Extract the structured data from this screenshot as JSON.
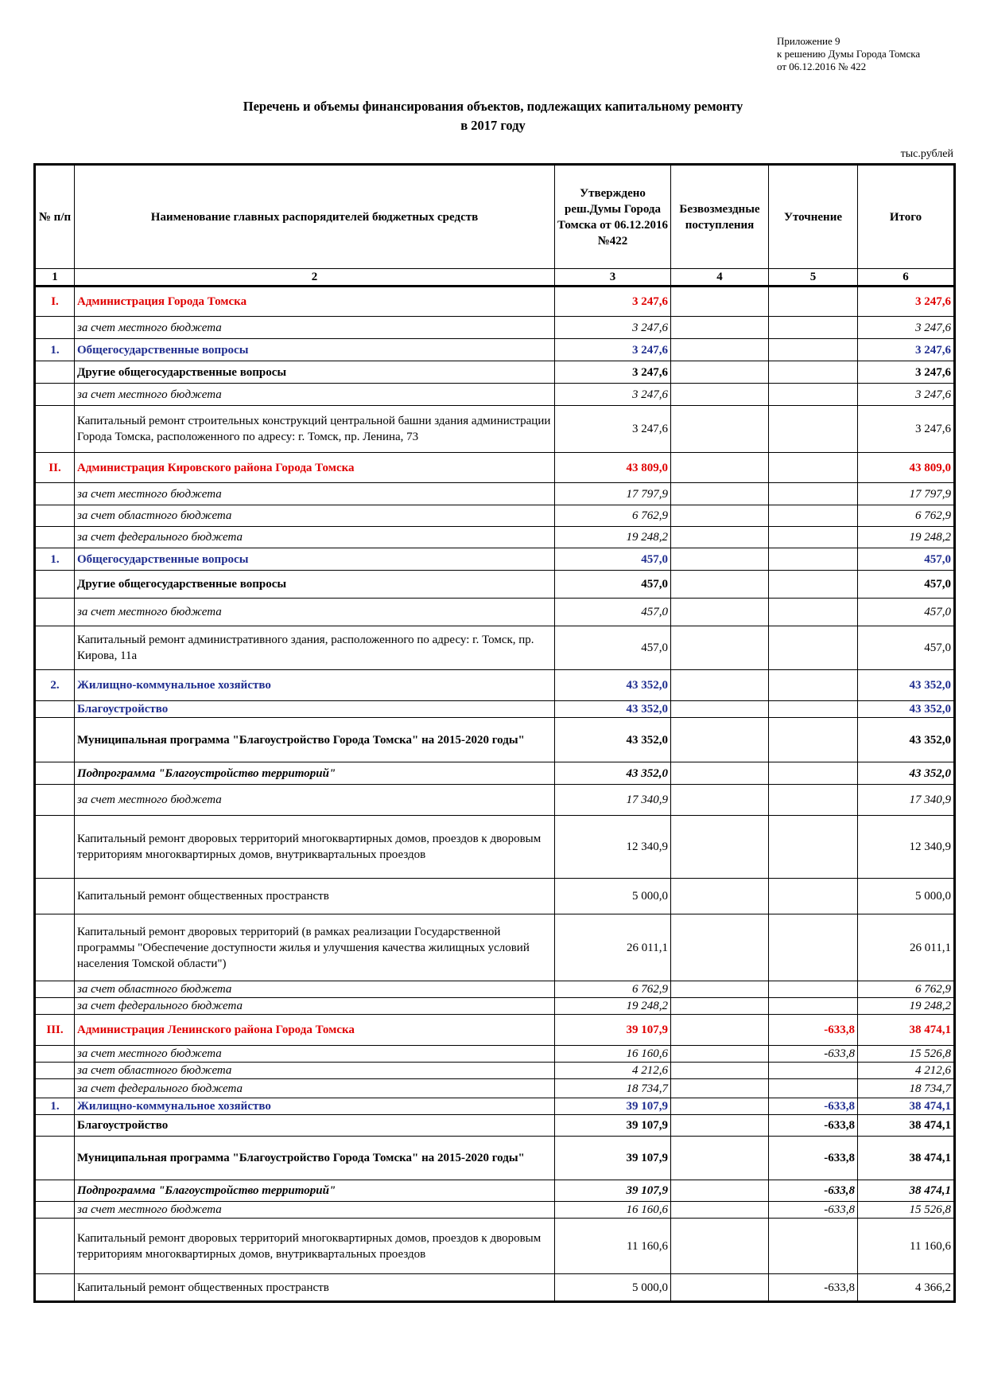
{
  "appendix": [
    "Приложение 9",
    "к решению Думы Города Томска",
    "от 06.12.2016 № 422"
  ],
  "title": [
    "Перечень и объемы финансирования объектов, подлежащих капитальному ремонту",
    "в 2017 году"
  ],
  "unit": "тыс.рублей",
  "headers": [
    "№ п/п",
    "Наименование главных распорядителей бюджетных средств",
    "Утверждено реш.Думы Города Томска от 06.12.2016 №422",
    "Безвозмездные поступления",
    "Уточнение",
    "Итого"
  ],
  "colnums": [
    "1",
    "2",
    "3",
    "4",
    "5",
    "6"
  ],
  "rows": [
    {
      "num": "I.",
      "name": "Администрация Города Томска",
      "approved": "3 247,6",
      "free": "",
      "adj": "",
      "total": "3 247,6",
      "style": "red"
    },
    {
      "num": "",
      "name": "за счет местного бюджета",
      "approved": "3 247,6",
      "free": "",
      "adj": "",
      "total": "3 247,6",
      "style": "it"
    },
    {
      "num": "1.",
      "name": "Общегосударственные вопросы",
      "approved": "3 247,6",
      "free": "",
      "adj": "",
      "total": "3 247,6",
      "style": "blue"
    },
    {
      "num": "",
      "name": "Другие общегосударственные вопросы",
      "approved": "3 247,6",
      "free": "",
      "adj": "",
      "total": "3 247,6",
      "style": "bold"
    },
    {
      "num": "",
      "name": "за счет местного бюджета",
      "approved": "3 247,6",
      "free": "",
      "adj": "",
      "total": "3 247,6",
      "style": "it"
    },
    {
      "num": "",
      "name": "Капитальный ремонт строительных конструкций центральной башни здания администрации Города Томска, расположенного по адресу: г. Томск, пр. Ленина, 73",
      "approved": "3 247,6",
      "free": "",
      "adj": "",
      "total": "3 247,6",
      "style": "plain"
    },
    {
      "num": "II.",
      "name": "Администрация Кировского района Города Томска",
      "approved": "43 809,0",
      "free": "",
      "adj": "",
      "total": "43 809,0",
      "style": "red"
    },
    {
      "num": "",
      "name": "за счет местного бюджета",
      "approved": "17 797,9",
      "free": "",
      "adj": "",
      "total": "17 797,9",
      "style": "it"
    },
    {
      "num": "",
      "name": "за счет областного бюджета",
      "approved": "6 762,9",
      "free": "",
      "adj": "",
      "total": "6 762,9",
      "style": "it"
    },
    {
      "num": "",
      "name": "за счет федерального бюджета",
      "approved": "19 248,2",
      "free": "",
      "adj": "",
      "total": "19 248,2",
      "style": "it"
    },
    {
      "num": "1.",
      "name": "Общегосударственные вопросы",
      "approved": "457,0",
      "free": "",
      "adj": "",
      "total": "457,0",
      "style": "blue"
    },
    {
      "num": "",
      "name": "Другие общегосударственные вопросы",
      "approved": "457,0",
      "free": "",
      "adj": "",
      "total": "457,0",
      "style": "bold"
    },
    {
      "num": "",
      "name": "за счет местного бюджета",
      "approved": "457,0",
      "free": "",
      "adj": "",
      "total": "457,0",
      "style": "it"
    },
    {
      "num": "",
      "name": "Капитальный ремонт административного здания, расположенного по адресу: г. Томск, пр. Кирова, 11а",
      "approved": "457,0",
      "free": "",
      "adj": "",
      "total": "457,0",
      "style": "plain"
    },
    {
      "num": "2.",
      "name": "Жилищно-коммунальное хозяйство",
      "approved": "43 352,0",
      "free": "",
      "adj": "",
      "total": "43 352,0",
      "style": "blue"
    },
    {
      "num": "",
      "name": "Благоустройство",
      "approved": "43 352,0",
      "free": "",
      "adj": "",
      "total": "43 352,0",
      "style": "blue"
    },
    {
      "num": "",
      "name": "Муниципальная программа \"Благоустройство Города Томска\" на 2015-2020 годы\"",
      "approved": "43 352,0",
      "free": "",
      "adj": "",
      "total": "43 352,0",
      "style": "bold"
    },
    {
      "num": "",
      "name": "Подпрограмма \"Благоустройство территорий\"",
      "approved": "43 352,0",
      "free": "",
      "adj": "",
      "total": "43 352,0",
      "style": "bi"
    },
    {
      "num": "",
      "name": "за счет местного бюджета",
      "approved": "17 340,9",
      "free": "",
      "adj": "",
      "total": "17 340,9",
      "style": "it"
    },
    {
      "num": "",
      "name": "Капитальный ремонт дворовых территорий многоквартирных домов, проездов к дворовым территориям многоквартирных домов, внутриквартальных проездов",
      "approved": "12 340,9",
      "free": "",
      "adj": "",
      "total": "12 340,9",
      "style": "plain"
    },
    {
      "num": "",
      "name": "Капитальный ремонт общественных пространств",
      "approved": "5 000,0",
      "free": "",
      "adj": "",
      "total": "5 000,0",
      "style": "plain"
    },
    {
      "num": "",
      "name": "Капитальный ремонт дворовых территорий (в рамках реализации Государственной программы \"Обеспечение доступности жилья и улучшения качества жилищных условий населения Томской области\")",
      "approved": "26 011,1",
      "free": "",
      "adj": "",
      "total": "26 011,1",
      "style": "plain"
    },
    {
      "num": "",
      "name": "за счет областного бюджета",
      "approved": "6 762,9",
      "free": "",
      "adj": "",
      "total": "6 762,9",
      "style": "it"
    },
    {
      "num": "",
      "name": "за счет федерального бюджета",
      "approved": "19 248,2",
      "free": "",
      "adj": "",
      "total": "19 248,2",
      "style": "it"
    },
    {
      "num": "III.",
      "name": "Администрация Ленинского района Города Томска",
      "approved": "39 107,9",
      "free": "",
      "adj": "-633,8",
      "total": "38 474,1",
      "style": "red"
    },
    {
      "num": "",
      "name": "за счет местного бюджета",
      "approved": "16 160,6",
      "free": "",
      "adj": "-633,8",
      "total": "15 526,8",
      "style": "it"
    },
    {
      "num": "",
      "name": "за счет областного бюджета",
      "approved": "4 212,6",
      "free": "",
      "adj": "",
      "total": "4 212,6",
      "style": "it"
    },
    {
      "num": "",
      "name": "за счет федерального бюджета",
      "approved": "18 734,7",
      "free": "",
      "adj": "",
      "total": "18 734,7",
      "style": "it"
    },
    {
      "num": "1.",
      "name": "Жилищно-коммунальное хозяйство",
      "approved": "39 107,9",
      "free": "",
      "adj": "-633,8",
      "total": "38 474,1",
      "style": "blue"
    },
    {
      "num": "",
      "name": "Благоустройство",
      "approved": "39 107,9",
      "free": "",
      "adj": "-633,8",
      "total": "38 474,1",
      "style": "bold"
    },
    {
      "num": "",
      "name": "Муниципальная программа \"Благоустройство Города Томска\" на 2015-2020 годы\"",
      "approved": "39 107,9",
      "free": "",
      "adj": "-633,8",
      "total": "38 474,1",
      "style": "bold"
    },
    {
      "num": "",
      "name": "Подпрограмма \"Благоустройство территорий\"",
      "approved": "39 107,9",
      "free": "",
      "adj": "-633,8",
      "total": "38 474,1",
      "style": "bi"
    },
    {
      "num": "",
      "name": "за счет местного бюджета",
      "approved": "16 160,6",
      "free": "",
      "adj": "-633,8",
      "total": "15 526,8",
      "style": "it"
    },
    {
      "num": "",
      "name": "Капитальный ремонт дворовых территорий многоквартирных домов, проездов к дворовым территориям многоквартирных домов, внутриквартальных проездов",
      "approved": "11 160,6",
      "free": "",
      "adj": "",
      "total": "11 160,6",
      "style": "plain"
    },
    {
      "num": "",
      "name": "Капитальный ремонт общественных пространств",
      "approved": "5 000,0",
      "free": "",
      "adj": "-633,8",
      "total": "4 366,2",
      "style": "plain"
    }
  ]
}
